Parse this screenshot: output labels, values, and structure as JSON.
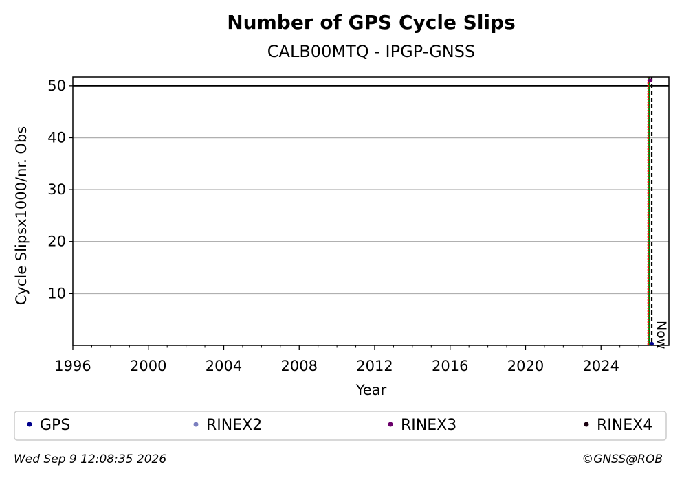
{
  "chart_data": {
    "type": "scatter",
    "title": "Number of GPS Cycle Slips",
    "subtitle": "CALB00MTQ - IPGP-GNSS",
    "xlabel": "Year",
    "ylabel": "Cycle Slipsx1000/nr. Obs",
    "xlim": [
      1996,
      2027.6
    ],
    "ylim": [
      0,
      51.7
    ],
    "x_ticks": [
      1996,
      2000,
      2004,
      2008,
      2012,
      2016,
      2020,
      2024
    ],
    "y_ticks": [
      10,
      20,
      30,
      40,
      50
    ],
    "grid": "horizontal",
    "threshold_line": 50,
    "vertical_lines": [
      {
        "x": 2026.55,
        "color": "#008000",
        "style": "solid"
      },
      {
        "x": 2026.5,
        "color": "#ff0000",
        "style": "dotted"
      },
      {
        "x": 2026.69,
        "color": "#000000",
        "style": "dashed",
        "label": "Now"
      }
    ],
    "series": [
      {
        "name": "GPS",
        "color": "#00008b",
        "points": [
          [
            2026.69,
            0.3
          ]
        ]
      },
      {
        "name": "RINEX2",
        "color": "#7b7fbf",
        "points": []
      },
      {
        "name": "RINEX3",
        "color": "#6a006a",
        "points": [
          [
            2026.6,
            51.0
          ]
        ]
      },
      {
        "name": "RINEX4",
        "color": "#1a0010",
        "points": []
      }
    ],
    "legend_position": "bottom"
  },
  "footer": {
    "timestamp": "Wed Sep  9 12:08:35 2026",
    "credit": "©GNSS@ROB"
  }
}
